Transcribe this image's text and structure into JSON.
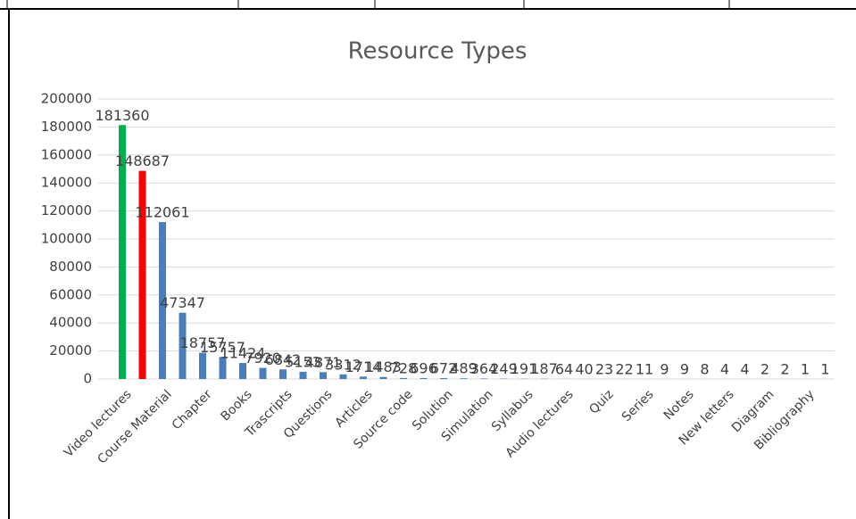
{
  "chart_data": {
    "type": "bar",
    "title": "Resource Types",
    "categories": [
      "Video lectures",
      null,
      "Course Material",
      null,
      "Chapter",
      null,
      "Books",
      null,
      "Trascripts",
      null,
      "Questions",
      null,
      "Articles",
      null,
      "Source code",
      null,
      "Solution",
      null,
      "Simulation",
      null,
      "Syllabus",
      null,
      "Audio lectures",
      null,
      "Quiz",
      null,
      "Series",
      null,
      "Notes",
      null,
      "New letters",
      null,
      "Diagram",
      null,
      "Bibliography",
      null
    ],
    "values": [
      181360,
      148687,
      112061,
      47347,
      18757,
      15757,
      11424,
      7920,
      6842,
      5153,
      4871,
      3312,
      1714,
      1483,
      728,
      696,
      672,
      489,
      364,
      249,
      191,
      187,
      64,
      40,
      23,
      22,
      11,
      9,
      9,
      8,
      4,
      4,
      2,
      2,
      1,
      1
    ],
    "colors": [
      "#00b050",
      "#ff0000",
      "#4a7ebb",
      "#4a7ebb",
      "#4a7ebb",
      "#4a7ebb",
      "#4a7ebb",
      "#4a7ebb",
      "#4a7ebb",
      "#4a7ebb",
      "#4a7ebb",
      "#4a7ebb",
      "#4a7ebb",
      "#4a7ebb",
      "#4a7ebb",
      "#4a7ebb",
      "#4a7ebb",
      "#4a7ebb",
      "#4a7ebb",
      "#4a7ebb",
      "#4a7ebb",
      "#4a7ebb",
      "#4a7ebb",
      "#4a7ebb",
      "#4a7ebb",
      "#4a7ebb",
      "#4a7ebb",
      "#4a7ebb",
      "#4a7ebb",
      "#4a7ebb",
      "#4a7ebb",
      "#4a7ebb",
      "#4a7ebb",
      "#4a7ebb",
      "#4a7ebb",
      "#4a7ebb"
    ],
    "ylim": [
      0,
      200000
    ],
    "yticks": [
      0,
      20000,
      40000,
      60000,
      80000,
      100000,
      120000,
      140000,
      160000,
      180000,
      200000
    ],
    "grid": true
  }
}
